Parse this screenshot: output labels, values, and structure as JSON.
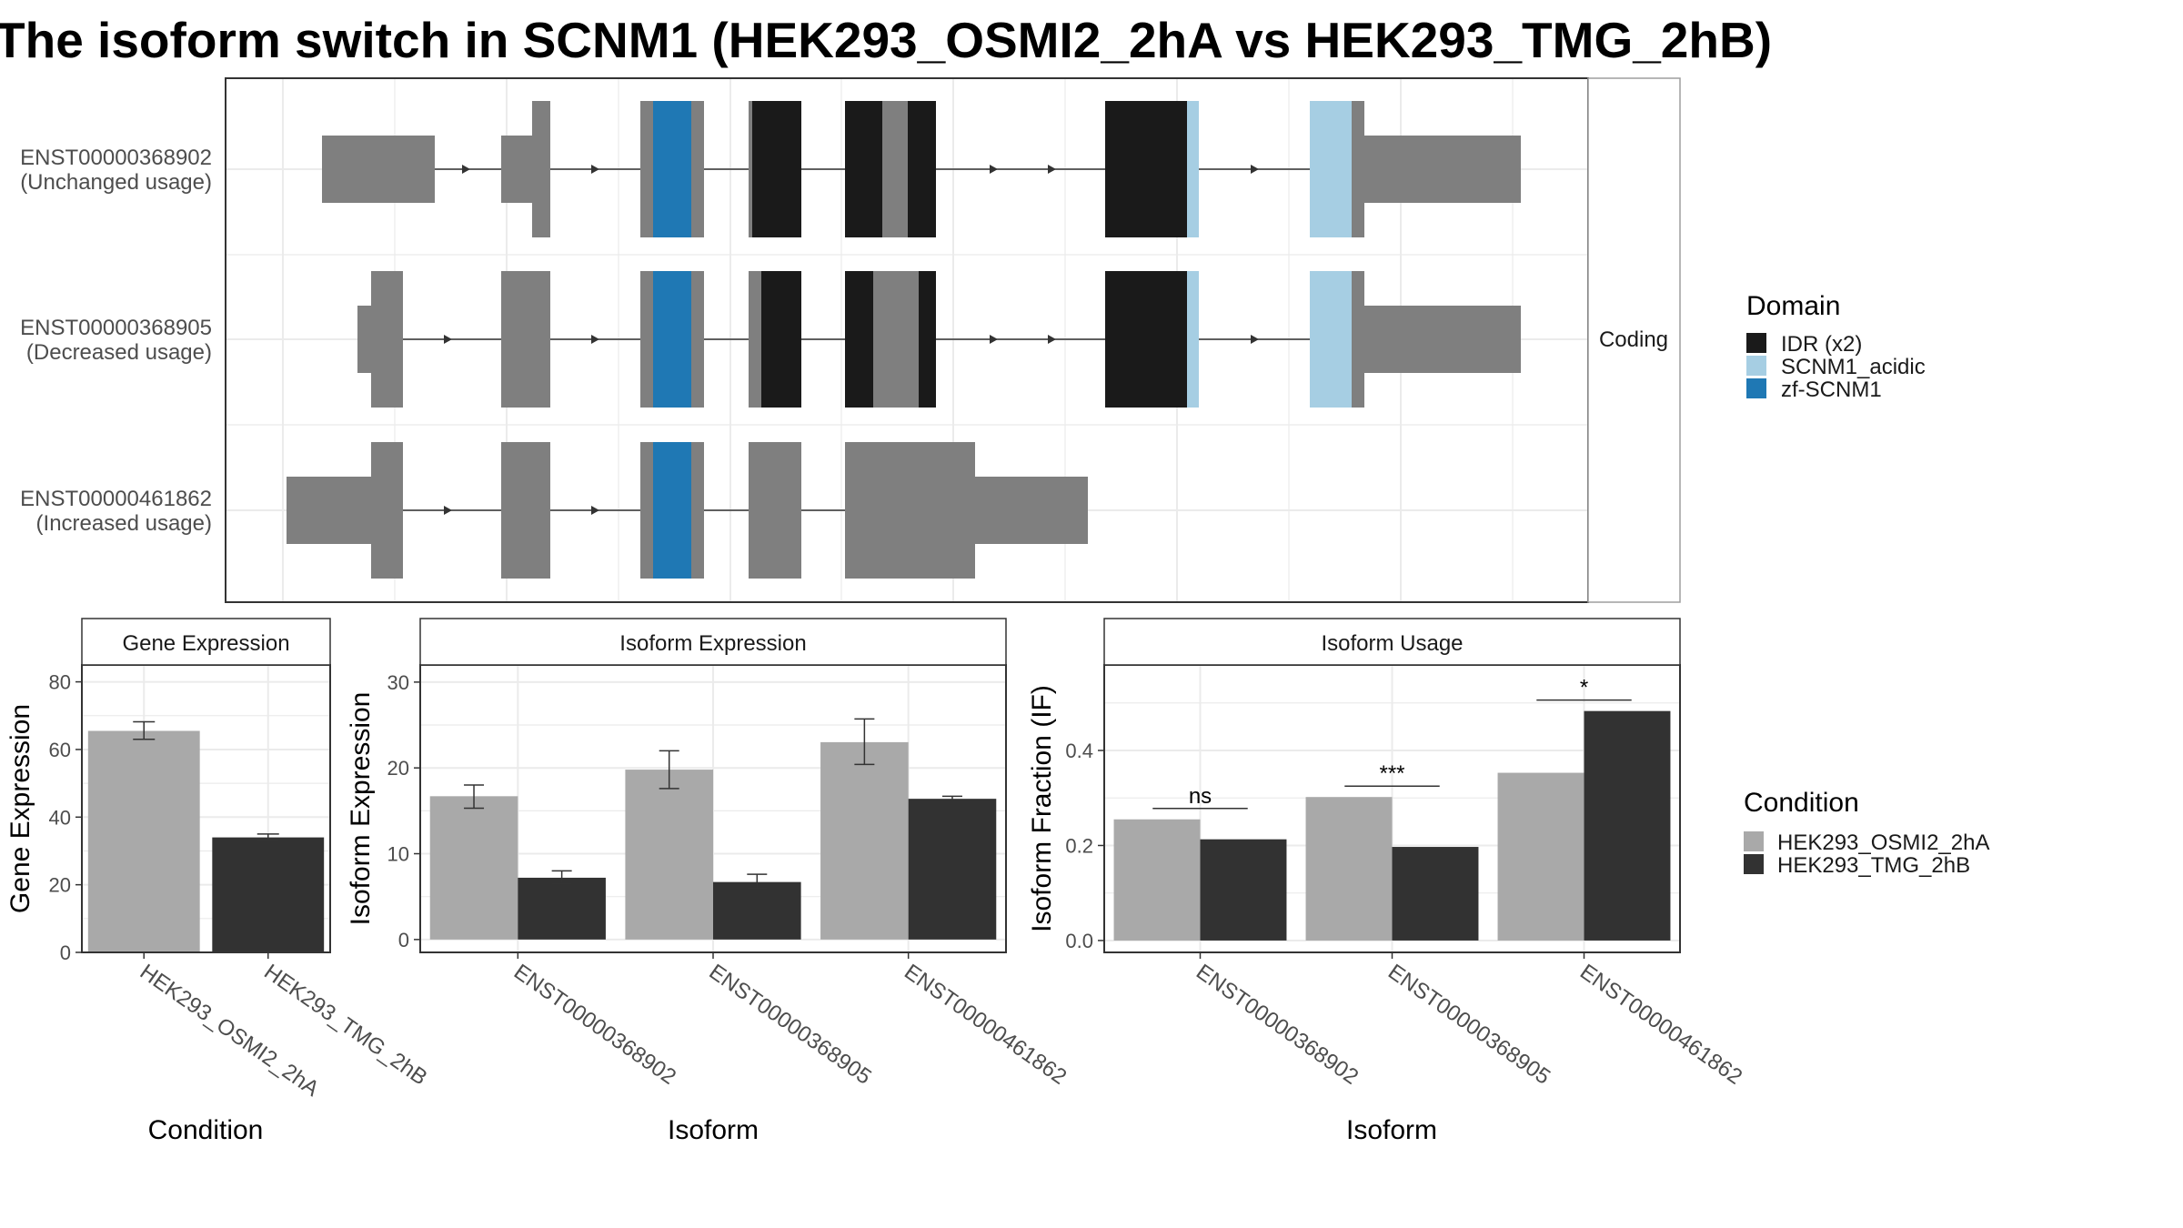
{
  "title": "The isoform switch in SCNM1 (HEK293_OSMI2_2hA vs HEK293_TMG_2hB)",
  "colors": {
    "exon": "#7f7f7f",
    "cond_a": "#a9a9a9",
    "cond_b": "#323232",
    "panel_border": "#333333",
    "strip_bg": "#ffffff",
    "grid": "#ebebeb"
  },
  "domain_legend": {
    "title": "Domain",
    "items": [
      {
        "label": "IDR (x2)",
        "color": "#1a1a1a"
      },
      {
        "label": "SCNM1_acidic",
        "color": "#a6cee3"
      },
      {
        "label": "zf-SCNM1",
        "color": "#1f78b4"
      }
    ]
  },
  "condition_legend": {
    "title": "Condition",
    "items": [
      {
        "label": "HEK293_OSMI2_2hA",
        "color": "#a9a9a9"
      },
      {
        "label": "HEK293_TMG_2hB",
        "color": "#323232"
      }
    ]
  },
  "transcripts": {
    "facet_label": "Coding",
    "items": [
      {
        "id": "ENST00000368902",
        "usage": "(Unchanged usage)"
      },
      {
        "id": "ENST00000368905",
        "usage": "(Decreased usage)"
      },
      {
        "id": "ENST00000461862",
        "usage": "(Increased usage)"
      }
    ]
  },
  "chart_data": [
    {
      "type": "bar",
      "title": "Gene Expression",
      "xlabel": "Condition",
      "ylabel": "Gene Expression",
      "categories": [
        "HEK293_OSMI2_2hA",
        "HEK293_TMG_2hB"
      ],
      "values": [
        65.5,
        34.0
      ],
      "errors": [
        [
          63.0,
          68.2
        ],
        [
          33.2,
          35.0
        ]
      ],
      "ylim": [
        0,
        85
      ],
      "yticks": [
        0,
        20,
        40,
        60,
        80
      ],
      "grid": true
    },
    {
      "type": "bar",
      "title": "Isoform Expression",
      "xlabel": "Isoform",
      "ylabel": "Isoform Expression",
      "categories": [
        "ENST00000368902",
        "ENST00000368905",
        "ENST00000461862"
      ],
      "series": [
        {
          "name": "HEK293_OSMI2_2hA",
          "values": [
            16.7,
            19.8,
            23.0
          ],
          "errors": [
            [
              15.3,
              18.0
            ],
            [
              17.6,
              22.0
            ],
            [
              20.4,
              25.7
            ]
          ]
        },
        {
          "name": "HEK293_TMG_2hB",
          "values": [
            7.2,
            6.7,
            16.4
          ],
          "errors": [
            [
              6.5,
              8.0
            ],
            [
              6.0,
              7.6
            ],
            [
              16.0,
              16.7
            ]
          ]
        }
      ],
      "ylim": [
        -1.5,
        32
      ],
      "yticks": [
        0,
        10,
        20,
        30
      ],
      "grid": true
    },
    {
      "type": "bar",
      "title": "Isoform Usage",
      "xlabel": "Isoform",
      "ylabel": "Isoform Fraction (IF)",
      "categories": [
        "ENST00000368902",
        "ENST00000368905",
        "ENST00000461862"
      ],
      "series": [
        {
          "name": "HEK293_OSMI2_2hA",
          "values": [
            0.255,
            0.302,
            0.353
          ]
        },
        {
          "name": "HEK293_TMG_2hB",
          "values": [
            0.213,
            0.197,
            0.483
          ]
        }
      ],
      "significance": [
        "ns",
        "***",
        "*"
      ],
      "ylim": [
        -0.025,
        0.58
      ],
      "yticks": [
        0.0,
        0.2,
        0.4
      ],
      "ytick_labels": [
        "0.0",
        "0.2",
        "0.4"
      ],
      "grid": true
    }
  ]
}
